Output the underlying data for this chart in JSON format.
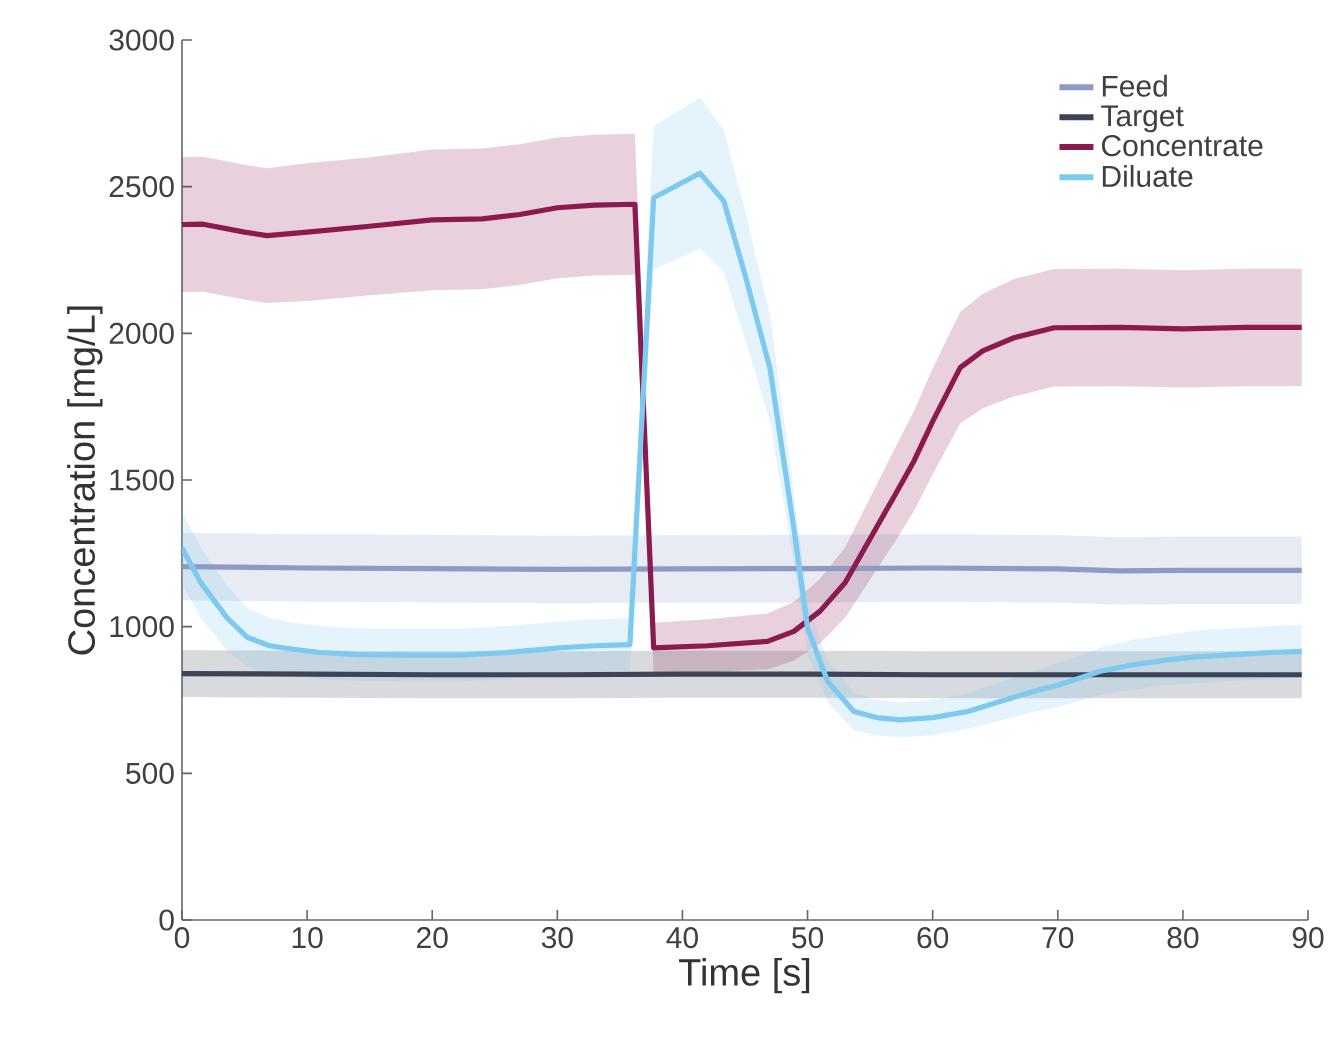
{
  "chart_data": {
    "type": "line",
    "xlabel": "Time [s]",
    "ylabel": "Concentration [mg/L]",
    "xlim": [
      0,
      90
    ],
    "ylim": [
      0,
      3000
    ],
    "xticks": [
      0,
      10,
      20,
      30,
      40,
      50,
      60,
      70,
      80,
      90
    ],
    "yticks": [
      0,
      500,
      1000,
      1500,
      2000,
      2500,
      3000
    ],
    "legend": "top right",
    "marker": "none",
    "line_style": "solid",
    "series": [
      {
        "name": "Feed",
        "color": "#8c9ac4",
        "x": [
          0,
          10,
          20,
          30,
          40,
          50,
          60,
          70,
          75,
          80,
          89.5
        ],
        "values": [
          1205,
          1200,
          1198,
          1195,
          1197,
          1198,
          1200,
          1197,
          1190,
          1192,
          1192
        ],
        "lower": [
          1090,
          1085,
          1083,
          1080,
          1082,
          1083,
          1085,
          1082,
          1075,
          1077,
          1077
        ],
        "upper": [
          1320,
          1315,
          1313,
          1310,
          1312,
          1313,
          1315,
          1312,
          1305,
          1307,
          1307
        ]
      },
      {
        "name": "Target",
        "color": "#3d4459",
        "x": [
          0,
          10,
          20,
          30,
          40,
          50,
          60,
          70,
          80,
          89.5
        ],
        "values": [
          840,
          838,
          836,
          836,
          838,
          838,
          836,
          836,
          836,
          836
        ],
        "lower": [
          760,
          758,
          756,
          756,
          758,
          758,
          756,
          756,
          756,
          756
        ],
        "upper": [
          920,
          918,
          916,
          916,
          918,
          918,
          916,
          916,
          916,
          916
        ]
      },
      {
        "name": "Concentrate",
        "color": "#8b1a4f",
        "x": [
          0,
          1.7,
          5,
          6.8,
          10,
          15,
          20,
          24,
          27,
          30,
          33,
          36.2,
          37.7,
          42,
          46.8,
          48.9,
          51,
          53,
          55,
          57,
          58.5,
          60,
          62.2,
          64,
          66.5,
          69.7,
          75,
          80,
          85,
          89.5
        ],
        "values": [
          2371,
          2372,
          2345,
          2333,
          2345,
          2365,
          2387,
          2390,
          2405,
          2428,
          2437,
          2440,
          928,
          935,
          950,
          984,
          1053,
          1150,
          1300,
          1450,
          1564,
          1700,
          1883,
          1940,
          1985,
          2019,
          2020,
          2015,
          2020,
          2020
        ],
        "lower": [
          2141,
          2142,
          2115,
          2103,
          2110,
          2130,
          2147,
          2150,
          2165,
          2188,
          2197,
          2200,
          843,
          845,
          855,
          884,
          943,
          1030,
          1160,
          1290,
          1394,
          1520,
          1693,
          1745,
          1785,
          1819,
          1820,
          1815,
          1820,
          1820
        ],
        "upper": [
          2601,
          2602,
          2575,
          2563,
          2580,
          2600,
          2627,
          2630,
          2645,
          2668,
          2677,
          2680,
          1013,
          1025,
          1045,
          1084,
          1163,
          1270,
          1440,
          1610,
          1734,
          1880,
          2073,
          2135,
          2185,
          2219,
          2220,
          2215,
          2220,
          2220
        ]
      },
      {
        "name": "Diluate",
        "color": "#7ec9ef",
        "x": [
          0,
          1.5,
          3.6,
          5.2,
          7,
          8.9,
          11,
          14.2,
          18,
          22.2,
          26,
          30.2,
          33,
          35.8,
          37.7,
          41.4,
          43.3,
          45,
          47,
          48.9,
          50,
          51.6,
          53.7,
          55.5,
          57.4,
          60,
          62.8,
          65,
          68.1,
          70,
          73.4,
          76,
          78.8,
          81,
          84.1,
          87,
          89.5
        ],
        "values": [
          1269,
          1150,
          1030,
          964,
          935,
          923,
          912,
          905,
          903,
          903,
          912,
          928,
          935,
          939,
          2462,
          2546,
          2451,
          2200,
          1880,
          1337,
          996,
          814,
          711,
          690,
          682,
          690,
          711,
          740,
          780,
          800,
          848,
          870,
          887,
          897,
          905,
          912,
          916
        ],
        "lower": [
          1144,
          1030,
          920,
          864,
          840,
          833,
          822,
          815,
          813,
          813,
          822,
          838,
          845,
          849,
          2217,
          2289,
          2209,
          1980,
          1700,
          1217,
          906,
          744,
          646,
          630,
          622,
          630,
          651,
          675,
          710,
          725,
          768,
          785,
          802,
          807,
          815,
          822,
          826
        ],
        "upper": [
          1394,
          1270,
          1140,
          1064,
          1030,
          1013,
          1002,
          995,
          993,
          993,
          1002,
          1018,
          1025,
          1029,
          2707,
          2803,
          2693,
          2420,
          2060,
          1457,
          1086,
          884,
          776,
          750,
          742,
          750,
          771,
          805,
          850,
          875,
          928,
          955,
          972,
          987,
          995,
          1002,
          1006
        ]
      }
    ]
  }
}
